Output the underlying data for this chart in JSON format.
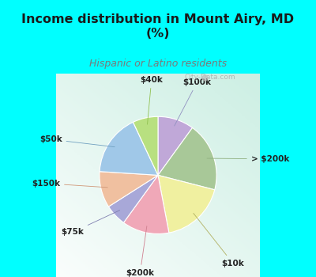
{
  "title": "Income distribution in Mount Airy, MD\n(%)",
  "subtitle": "Hispanic or Latino residents",
  "title_color": "#1a1a1a",
  "subtitle_color": "#7a7a7a",
  "background_color": "#00ffff",
  "labels_ordered": [
    "$100k",
    "> $200k",
    "$10k",
    "$200k",
    "$75k",
    "$150k",
    "$50k",
    "$40k"
  ],
  "sizes_ordered": [
    10,
    19,
    18,
    13,
    6,
    10,
    17,
    7
  ],
  "colors_ordered": [
    "#c0a8d8",
    "#a8c898",
    "#f0f0a0",
    "#f0a8b8",
    "#a8a8d8",
    "#f0c0a0",
    "#a0c8e8",
    "#b8e080"
  ],
  "startangle": 90,
  "counterclock": false,
  "watermark": "City-Data.com",
  "label_fontsize": 7.5,
  "title_fontsize": 11.5,
  "subtitle_fontsize": 9
}
